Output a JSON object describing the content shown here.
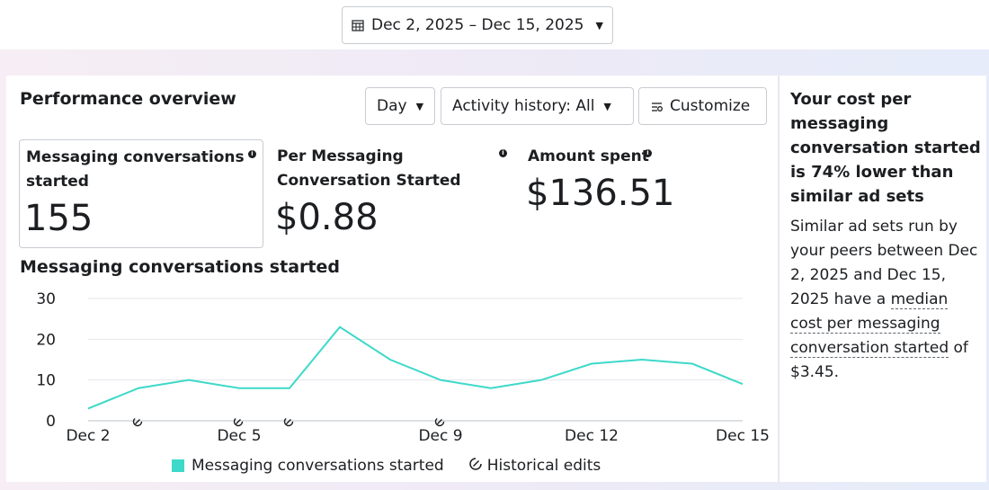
{
  "date_range": {
    "label": "Dec 2, 2025 – Dec 15, 2025"
  },
  "overview": {
    "title": "Performance overview",
    "granularity": "Day",
    "activity": "Activity history: All",
    "customize": "Customize"
  },
  "metrics": [
    {
      "label_1": "Messaging conversations",
      "label_2": "started",
      "value": "155"
    },
    {
      "label_1": "Per Messaging",
      "label_2": "Conversation Started",
      "value": "$0.88"
    },
    {
      "label_1": "Amount spent",
      "value": "$136.51"
    }
  ],
  "chart_data": {
    "type": "line",
    "title": "Messaging conversations started",
    "x": [
      "Dec 2",
      "Dec 3",
      "Dec 4",
      "Dec 5",
      "Dec 6",
      "Dec 7",
      "Dec 8",
      "Dec 9",
      "Dec 10",
      "Dec 11",
      "Dec 12",
      "Dec 13",
      "Dec 14",
      "Dec 15"
    ],
    "x_tick_labels": [
      "Dec 2",
      "Dec 5",
      "Dec 9",
      "Dec 12",
      "Dec 15"
    ],
    "series": [
      {
        "name": "Messaging conversations started",
        "color": "#3dd9c9",
        "values": [
          3,
          8,
          10,
          8,
          8,
          23,
          15,
          10,
          8,
          10,
          14,
          15,
          14,
          9
        ]
      }
    ],
    "y_ticks": [
      0,
      10,
      20,
      30
    ],
    "ylim": [
      0,
      30
    ],
    "grid": true,
    "historical_edits": [
      "Dec 3",
      "Dec 5",
      "Dec 6",
      "Dec 9"
    ],
    "legend": {
      "series_label": "Messaging conversations started",
      "edits_label": "Historical edits",
      "placement": "bottom"
    }
  },
  "insight": {
    "headline": "Your cost per messaging conversation started is 74% lower than similar ad sets",
    "body_pre": "Similar ad sets run by your peers between Dec 2, 2025 and Dec 15, 2025 have a ",
    "body_link": "median cost per messaging conversation started",
    "body_post": " of $3.45."
  }
}
